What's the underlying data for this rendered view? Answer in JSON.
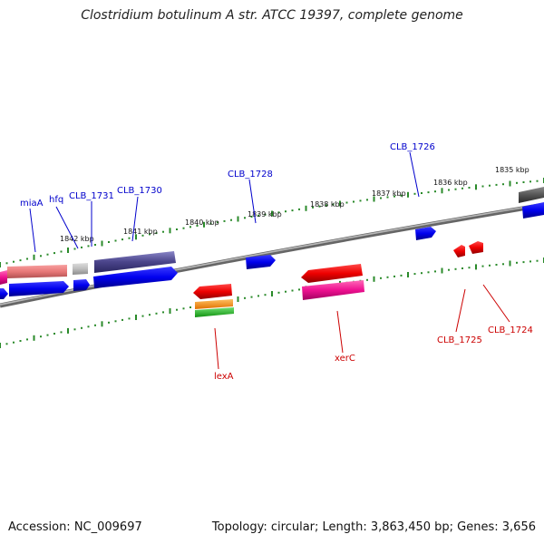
{
  "title": "Clostridium botulinum A str. ATCC 19397, complete genome",
  "footer": {
    "accession": "Accession: NC_009697",
    "summary": "Topology: circular; Length: 3,863,450 bp; Genes: 3,656"
  },
  "colors": {
    "forward_label": "#0000cc",
    "reverse_label": "#cc0000",
    "tick": "#2a8a2a",
    "backbone": "#888888"
  },
  "kbp_labels": [
    "1842 kbp",
    "1841 kbp",
    "1840 kbp",
    "1839 kbp",
    "1838 kbp",
    "1837 kbp",
    "1836 kbp",
    "1835 kbp"
  ],
  "gene_labels": {
    "forward": [
      "miaA",
      "hfq",
      "CLB_1731",
      "CLB_1730",
      "CLB_1728",
      "CLB_1726"
    ],
    "reverse": [
      "lexA",
      "xerC",
      "CLB_1725",
      "CLB_1724"
    ]
  }
}
